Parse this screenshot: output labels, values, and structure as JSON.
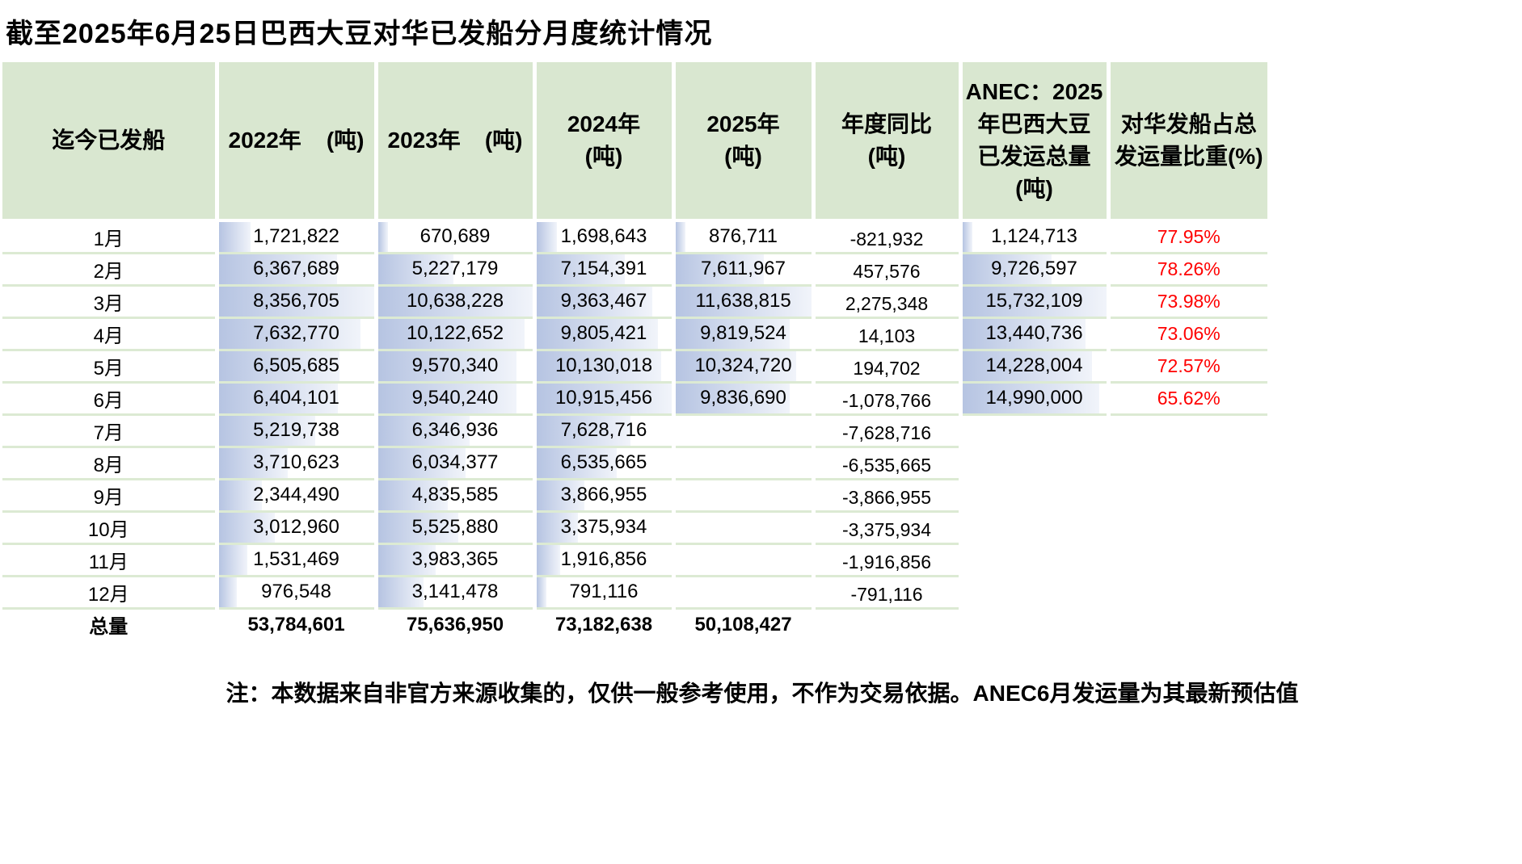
{
  "title": "截至2025年6月25日巴西大豆对华已发船分月度统计情况",
  "footnote": "注：本数据来自非官方来源收集的，仅供一般参考使用，不作为交易依据。ANEC6月发运量为其最新预估值",
  "colors": {
    "header_bg": "#d9e7d0",
    "row_line": "#dcead3",
    "bar_from": "#b6c4e2",
    "bar_to": "#f1f4fa",
    "percent_red": "#ff0000"
  },
  "table": {
    "header": {
      "col_month": "迄今已发船",
      "col_2022": {
        "year": "2022年",
        "unit": "(吨)"
      },
      "col_2023": {
        "year": "2023年",
        "unit": "(吨)"
      },
      "col_2024": {
        "line1": "2024年",
        "line2": "(吨)"
      },
      "col_2025": {
        "line1": "2025年",
        "line2": "(吨)"
      },
      "col_yoy": {
        "line1": "年度同比",
        "line2": "(吨)"
      },
      "col_anec": {
        "line1": "ANEC：2025",
        "line2": "年巴西大豆",
        "line3": "已发运总量",
        "line4": "(吨)"
      },
      "col_share": {
        "line1": "对华发船占总",
        "line2": "发运量比重(%)"
      }
    },
    "rows": [
      {
        "month": "1月",
        "y2022": "1,721,822",
        "y2023": "670,689",
        "y2024": "1,698,643",
        "y2025": "876,711",
        "yoy": "-821,932",
        "anec": "1,124,713",
        "share": "77.95%"
      },
      {
        "month": "2月",
        "y2022": "6,367,689",
        "y2023": "5,227,179",
        "y2024": "7,154,391",
        "y2025": "7,611,967",
        "yoy": "457,576",
        "anec": "9,726,597",
        "share": "78.26%"
      },
      {
        "month": "3月",
        "y2022": "8,356,705",
        "y2023": "10,638,228",
        "y2024": "9,363,467",
        "y2025": "11,638,815",
        "yoy": "2,275,348",
        "anec": "15,732,109",
        "share": "73.98%"
      },
      {
        "month": "4月",
        "y2022": "7,632,770",
        "y2023": "10,122,652",
        "y2024": "9,805,421",
        "y2025": "9,819,524",
        "yoy": "14,103",
        "anec": "13,440,736",
        "share": "73.06%"
      },
      {
        "month": "5月",
        "y2022": "6,505,685",
        "y2023": "9,570,340",
        "y2024": "10,130,018",
        "y2025": "10,324,720",
        "yoy": "194,702",
        "anec": "14,228,004",
        "share": "72.57%"
      },
      {
        "month": "6月",
        "y2022": "6,404,101",
        "y2023": "9,540,240",
        "y2024": "10,915,456",
        "y2025": "9,836,690",
        "yoy": "-1,078,766",
        "anec": "14,990,000",
        "share": "65.62%"
      },
      {
        "month": "7月",
        "y2022": "5,219,738",
        "y2023": "6,346,936",
        "y2024": "7,628,716",
        "y2025": "",
        "yoy": "-7,628,716",
        "anec": "",
        "share": ""
      },
      {
        "month": "8月",
        "y2022": "3,710,623",
        "y2023": "6,034,377",
        "y2024": "6,535,665",
        "y2025": "",
        "yoy": "-6,535,665",
        "anec": "",
        "share": ""
      },
      {
        "month": "9月",
        "y2022": "2,344,490",
        "y2023": "4,835,585",
        "y2024": "3,866,955",
        "y2025": "",
        "yoy": "-3,866,955",
        "anec": "",
        "share": ""
      },
      {
        "month": "10月",
        "y2022": "3,012,960",
        "y2023": "5,525,880",
        "y2024": "3,375,934",
        "y2025": "",
        "yoy": "-3,375,934",
        "anec": "",
        "share": ""
      },
      {
        "month": "11月",
        "y2022": "1,531,469",
        "y2023": "3,983,365",
        "y2024": "1,916,856",
        "y2025": "",
        "yoy": "-1,916,856",
        "anec": "",
        "share": ""
      },
      {
        "month": "12月",
        "y2022": "976,548",
        "y2023": "3,141,478",
        "y2024": "791,116",
        "y2025": "",
        "yoy": "-791,116",
        "anec": "",
        "share": ""
      }
    ],
    "total": {
      "label": "总量",
      "y2022": "53,784,601",
      "y2023": "75,636,950",
      "y2024": "73,182,638",
      "y2025": "50,108,427"
    }
  }
}
